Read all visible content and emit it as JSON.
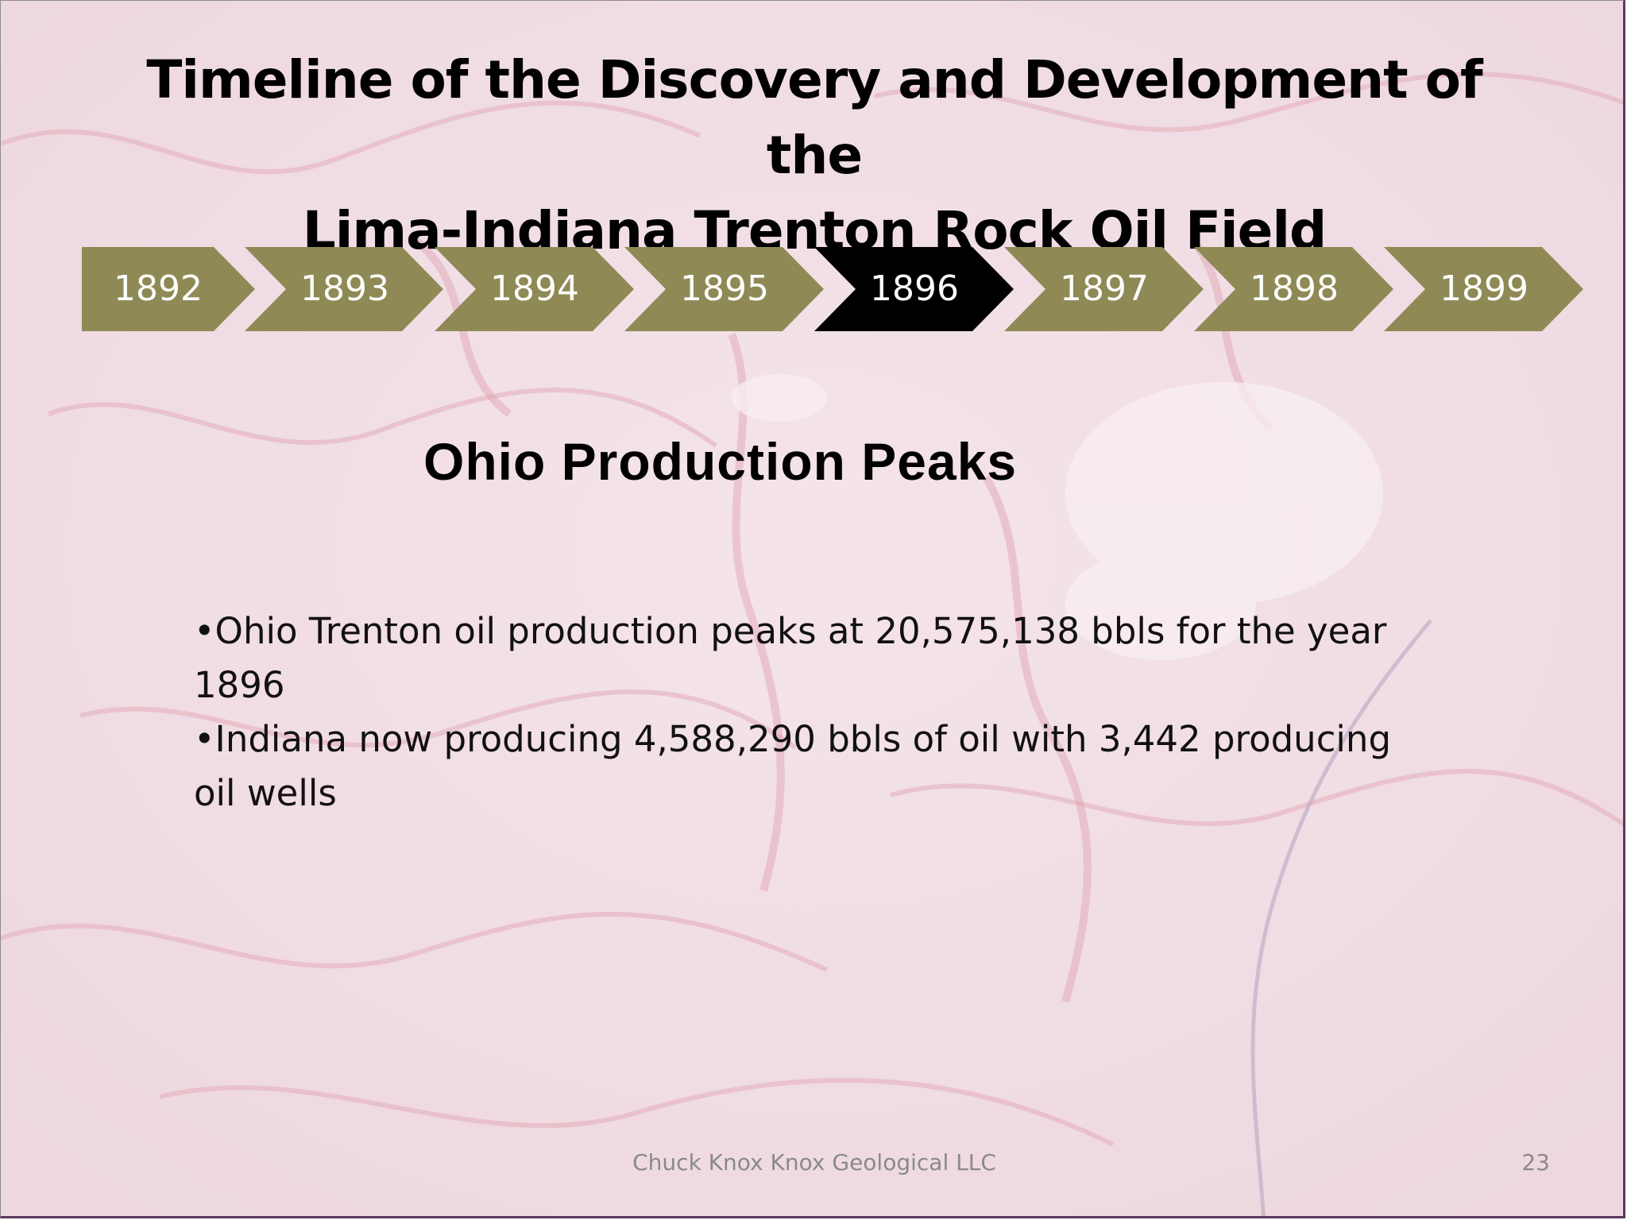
{
  "slide": {
    "title_line1": "Timeline of the Discovery and Development of the",
    "title_line2": "Lima-Indiana Trenton Rock Oil Field",
    "timeline": {
      "years": [
        "1892",
        "1893",
        "1894",
        "1895",
        "1896",
        "1897",
        "1898",
        "1899"
      ],
      "active_year": "1896",
      "colors": {
        "default": "#8f8a55",
        "active": "#000000",
        "text": "#ffffff"
      }
    },
    "heading": "Ohio Production Peaks",
    "bullets": [
      "•Ohio Trenton oil production peaks at 20,575,138 bbls for the year 1896",
      "•Indiana now producing 4,588,290 bbls of oil with 3,442 producing oil wells"
    ],
    "footer": "Chuck Knox Knox Geological LLC",
    "page_number": "23",
    "background": "faded-topographic-map",
    "background_color": "#f1dfe5"
  }
}
